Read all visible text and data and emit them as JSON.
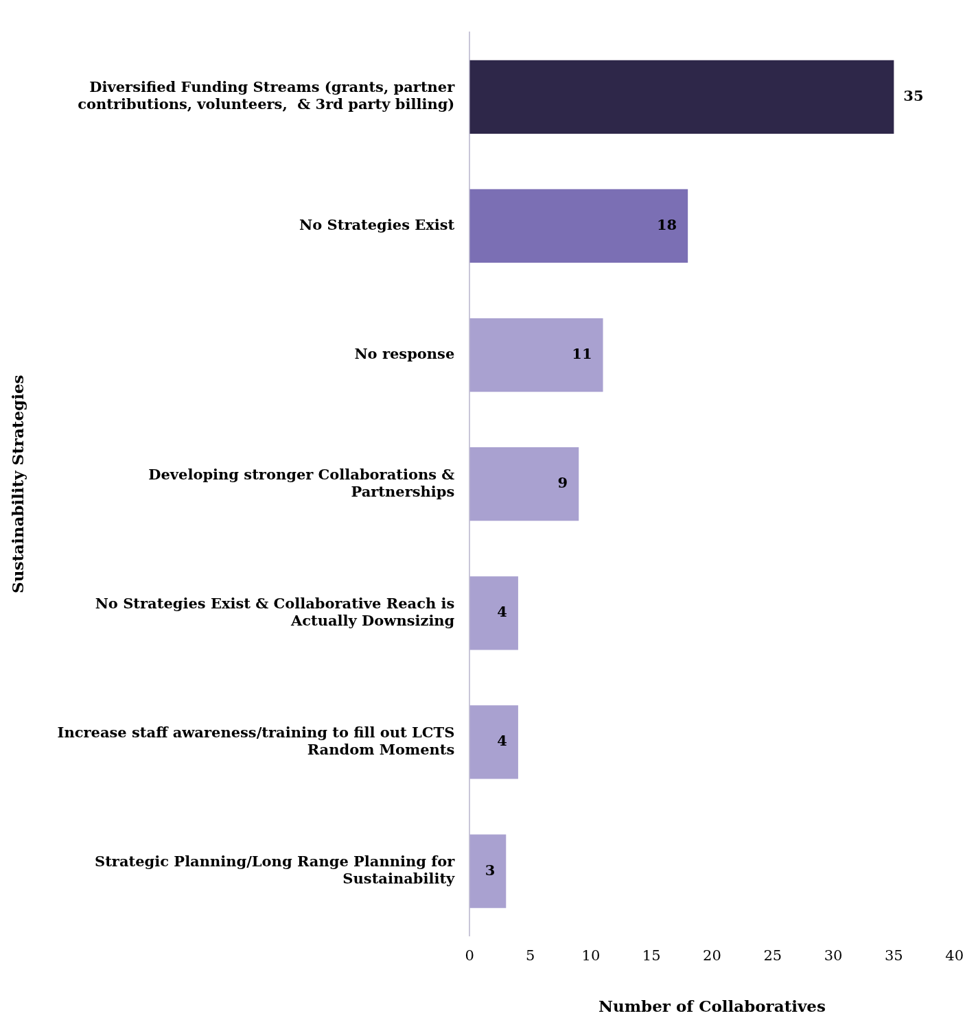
{
  "chart_data": {
    "type": "bar",
    "orientation": "horizontal",
    "xlabel": "Number of Collaboratives",
    "ylabel": "Sustainability Strategies",
    "categories": [
      "Diversified Funding Streams (grants, partner contributions, volunteers,  & 3rd party billing)",
      "No Strategies Exist",
      "No response",
      "Developing stronger Collaborations & Partnerships",
      "No Strategies Exist & Collaborative Reach is Actually Downsizing",
      "Increase staff awareness/training to fill out LCTS Random Moments",
      "Strategic Planning/Long Range Planning for Sustainability"
    ],
    "values": [
      35,
      18,
      11,
      9,
      4,
      4,
      3
    ],
    "colors": [
      "#2e2749",
      "#7b6fb4",
      "#a9a1d0",
      "#a9a1d0",
      "#a9a1d0",
      "#a9a1d0",
      "#a9a1d0"
    ],
    "xlim": [
      0,
      40
    ],
    "xticks": [
      0,
      5,
      10,
      15,
      20,
      25,
      30,
      35,
      40
    ],
    "data_labels": true,
    "grid": false,
    "legend": false
  }
}
